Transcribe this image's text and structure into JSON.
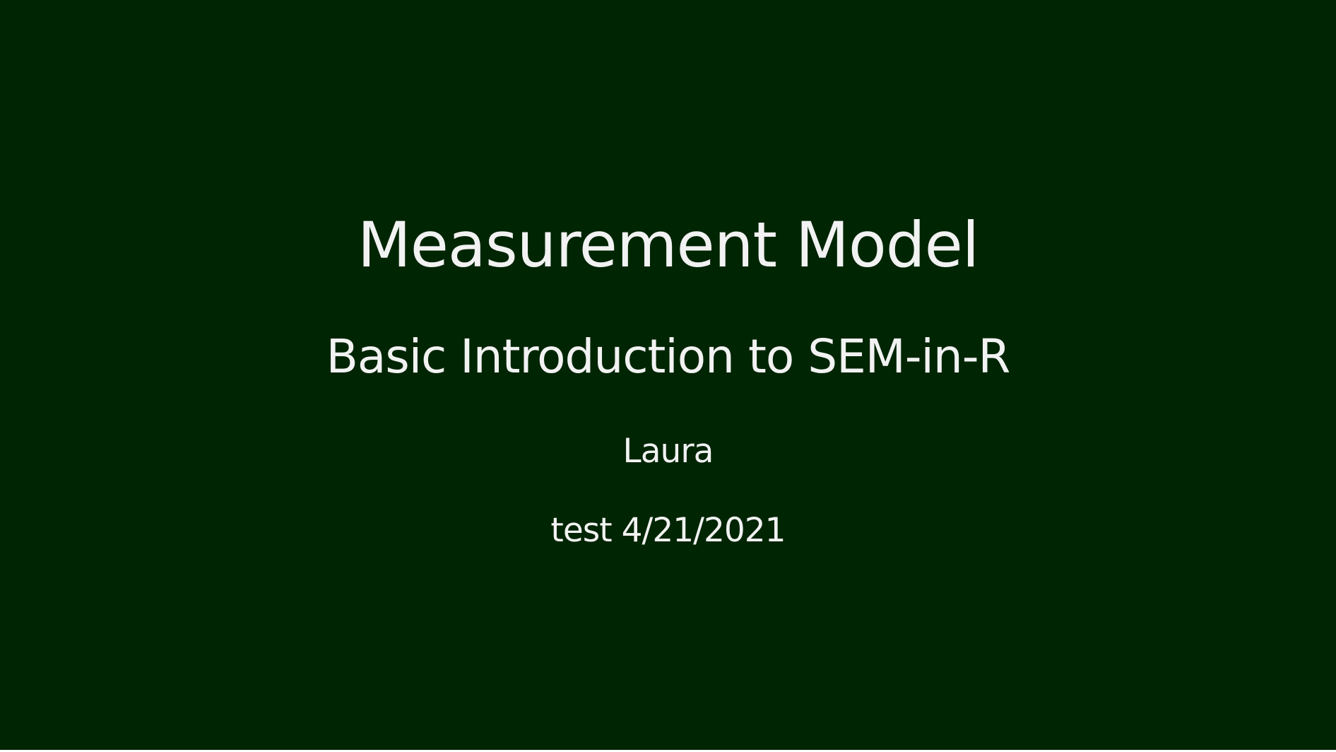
{
  "slide": {
    "background_color": "#002503",
    "text_color": "#f2f2f2",
    "title": "Measurement Model",
    "subtitle": "Basic Introduction to SEM-in-R",
    "author": "Laura",
    "date": "test 4/21/2021"
  }
}
